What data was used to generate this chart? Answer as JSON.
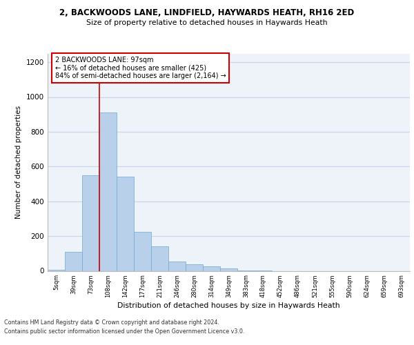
{
  "title1": "2, BACKWOODS LANE, LINDFIELD, HAYWARDS HEATH, RH16 2ED",
  "title2": "Size of property relative to detached houses in Haywards Heath",
  "xlabel": "Distribution of detached houses by size in Haywards Heath",
  "ylabel": "Number of detached properties",
  "categories": [
    "5sqm",
    "39sqm",
    "73sqm",
    "108sqm",
    "142sqm",
    "177sqm",
    "211sqm",
    "246sqm",
    "280sqm",
    "314sqm",
    "349sqm",
    "383sqm",
    "418sqm",
    "452sqm",
    "486sqm",
    "521sqm",
    "555sqm",
    "590sqm",
    "624sqm",
    "659sqm",
    "693sqm"
  ],
  "bar_heights": [
    7,
    110,
    550,
    910,
    540,
    225,
    140,
    55,
    38,
    25,
    15,
    3,
    1,
    0,
    0,
    0,
    0,
    0,
    0,
    0,
    0
  ],
  "bar_color": "#b8d0ea",
  "bar_edge_color": "#6aaad4",
  "grid_color": "#c8d4e8",
  "background_color": "#eef2f9",
  "vline_color": "#cc0000",
  "annotation_text": "2 BACKWOODS LANE: 97sqm\n← 16% of detached houses are smaller (425)\n84% of semi-detached houses are larger (2,164) →",
  "annotation_box_color": "#ffffff",
  "annotation_box_edge": "#cc0000",
  "ylim": [
    0,
    1250
  ],
  "yticks": [
    0,
    200,
    400,
    600,
    800,
    1000,
    1200
  ],
  "footer1": "Contains HM Land Registry data © Crown copyright and database right 2024.",
  "footer2": "Contains public sector information licensed under the Open Government Licence v3.0."
}
